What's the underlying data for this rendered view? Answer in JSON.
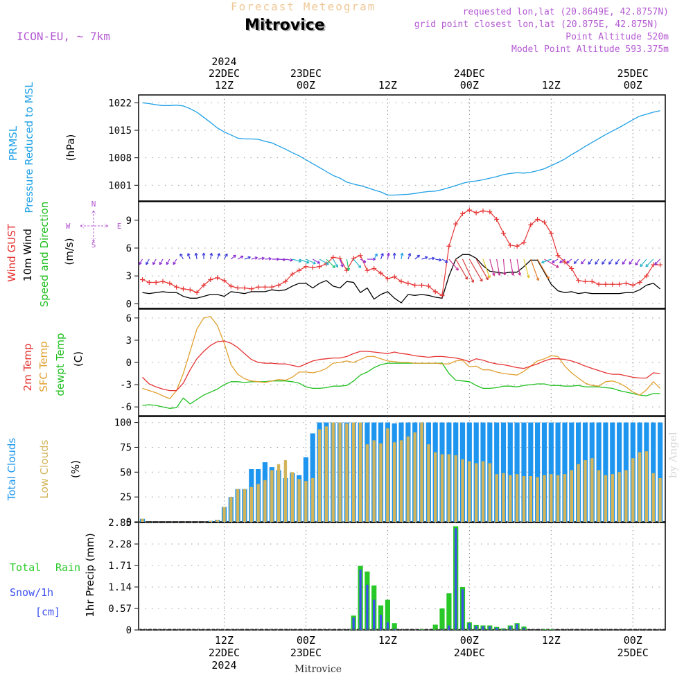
{
  "header": {
    "product_title": "Forecast Meteogram",
    "location": "Mitrovice",
    "model": "ICON-EU, ~ 7km",
    "requested": "requested lon,lat (20.8649E, 42.8757N)",
    "grid_point": "grid point closest lon,lat (20.875E, 42.875N)",
    "point_altitude": "Point Altitude 520m",
    "model_altitude": "Model Point Altitude 593.375m",
    "footer_location": "Mitrovice",
    "watermark": "by Angel"
  },
  "colors": {
    "pressure": "#1ea0e6",
    "gust": "#e63232",
    "wind": "#000000",
    "temp2m": "#e63232",
    "sfctemp": "#e0a030",
    "dewpt": "#20c020",
    "total_clouds": "#1e96f0",
    "low_clouds": "#d2b45a",
    "rain": "#28c828",
    "snow": "#3c50f0",
    "label_purple": "#b45ad2",
    "label_orange": "#f0c896"
  },
  "time_axis": {
    "top": [
      {
        "h": 12,
        "lines": [
          "2024",
          "22DEC",
          "12Z"
        ]
      },
      {
        "h": 24,
        "lines": [
          "23DEC",
          "00Z"
        ]
      },
      {
        "h": 36,
        "lines": [
          "12Z"
        ]
      },
      {
        "h": 48,
        "lines": [
          "24DEC",
          "00Z"
        ]
      },
      {
        "h": 60,
        "lines": [
          "12Z"
        ]
      },
      {
        "h": 72,
        "lines": [
          "25DEC",
          "00Z"
        ]
      }
    ],
    "bottom": [
      {
        "h": 12,
        "lines": [
          "12Z",
          "22DEC",
          "2024"
        ]
      },
      {
        "h": 24,
        "lines": [
          "00Z",
          "23DEC"
        ]
      },
      {
        "h": 36,
        "lines": [
          "12Z"
        ]
      },
      {
        "h": 48,
        "lines": [
          "00Z",
          "24DEC"
        ]
      },
      {
        "h": 60,
        "lines": [
          "12Z"
        ]
      },
      {
        "h": 72,
        "lines": [
          "00Z",
          "25DEC"
        ]
      }
    ]
  },
  "chart_data": [
    {
      "id": "pressure",
      "type": "line",
      "axis_labels": [
        "PRMSL",
        "Pressure Reduced to MSL"
      ],
      "unit": "(hPa)",
      "yticks": [
        "1022",
        "1015",
        "1008",
        "1001"
      ],
      "ylim": [
        997,
        1024
      ],
      "x_hours_start": 0,
      "series": [
        {
          "name": "PRMSL",
          "values": [
            1022,
            1021.8,
            1021.5,
            1021.3,
            1021.3,
            1021.4,
            1021.2,
            1020.5,
            1019.6,
            1018.3,
            1017,
            1015.6,
            1014.6,
            1013.8,
            1013,
            1012.8,
            1012.8,
            1012.7,
            1012.2,
            1011.8,
            1011,
            1010.2,
            1009.3,
            1008.5,
            1007.5,
            1006.5,
            1005.5,
            1004.5,
            1003.5,
            1002.8,
            1001.8,
            1001.3,
            1000.9,
            1000.4,
            999.8,
            999.3,
            998.5,
            998.5,
            998.6,
            998.7,
            998.9,
            999.2,
            999.4,
            999.5,
            999.9,
            1000.4,
            1000.9,
            1001.5,
            1001.9,
            1002.1,
            1002.4,
            1002.8,
            1003.2,
            1003.7,
            1004,
            1004.2,
            1004.1,
            1004.3,
            1004.7,
            1005.2,
            1006,
            1006.8,
            1007.7,
            1008.8,
            1009.8,
            1010.9,
            1011.9,
            1012.9,
            1013.9,
            1014.8,
            1015.7,
            1016.7,
            1017.7,
            1018.6,
            1019.1,
            1019.6,
            1020
          ]
        }
      ]
    },
    {
      "id": "wind",
      "type": "line",
      "axis_labels": [
        "Wind GUST",
        "10m Wind",
        "Speed and Direction"
      ],
      "compass": [
        "N",
        "S",
        "W",
        "E"
      ],
      "unit": "(m/s)",
      "yticks": [
        "9",
        "6",
        "3",
        "0"
      ],
      "ylim": [
        -0.5,
        11
      ],
      "x_hours_start": 0,
      "series": [
        {
          "name": "Wind GUST",
          "values": [
            2.6,
            2.3,
            2.3,
            2.4,
            2.2,
            1.8,
            1.6,
            1.5,
            1.2,
            2,
            2.6,
            2.8,
            2.5,
            1.9,
            1.7,
            1.7,
            1.6,
            1.8,
            1.8,
            1.8,
            2,
            2.4,
            3.2,
            3.6,
            4,
            3.9,
            4,
            4.3,
            5,
            4.9,
            3.6,
            4.9,
            5.2,
            3.6,
            3.8,
            3.3,
            2.7,
            2.9,
            2.4,
            2.2,
            2,
            2,
            1.9,
            1.3,
            0.9,
            6.2,
            8.6,
            9.7,
            10.1,
            9.8,
            10,
            9.9,
            9.1,
            7.6,
            6.3,
            6.2,
            6.6,
            8.5,
            9.1,
            8.8,
            7.6,
            5.2,
            4.5,
            3.8,
            2.5,
            2.4,
            2.4,
            2.1,
            2.1,
            2.1,
            2.1,
            2.2,
            2,
            2.3,
            3,
            4.2,
            4.2
          ]
        },
        {
          "name": "10m Wind",
          "values": [
            1.2,
            1.1,
            1.2,
            1.3,
            1.2,
            1.2,
            0.8,
            0.6,
            0.6,
            0.8,
            1,
            1,
            0.8,
            1.3,
            1.2,
            1.1,
            1.3,
            1.3,
            1.3,
            1.5,
            1.4,
            1.5,
            1.9,
            2.2,
            2.2,
            1.7,
            2.2,
            2.5,
            1.9,
            1.7,
            2.4,
            2.3,
            1.2,
            1.7,
            0.5,
            1,
            1.3,
            0.6,
            0.1,
            1,
            0.9,
            1,
            0.9,
            0.7,
            0.6,
            3,
            4.8,
            5.3,
            5.3,
            4.9,
            4.1,
            3.5,
            3.4,
            3.3,
            3.4,
            3.4,
            4,
            4.7,
            4.7,
            3.4,
            2.1,
            1.4,
            1.2,
            1.3,
            1.1,
            1.2,
            1.1,
            1.1,
            1.1,
            1.1,
            1.1,
            1.2,
            1.2,
            1.5,
            2,
            2.2,
            1.6
          ]
        },
        {
          "name": "wind_direction_deg",
          "values": [
            30,
            30,
            30,
            30,
            30,
            30,
            150,
            160,
            170,
            180,
            190,
            200,
            210,
            230,
            240,
            250,
            255,
            260,
            265,
            270,
            275,
            280,
            285,
            290,
            295,
            300,
            300,
            315,
            330,
            340,
            350,
            320,
            300,
            270,
            210,
            200,
            190,
            180,
            190,
            200,
            230,
            250,
            260,
            280,
            300,
            320,
            330,
            335,
            330,
            330,
            340,
            345,
            350,
            355,
            350,
            350,
            345,
            340,
            330,
            300,
            70,
            60,
            55,
            50,
            45,
            40,
            35,
            35,
            35,
            35,
            35,
            35,
            35,
            35,
            40,
            45,
            45
          ]
        }
      ]
    },
    {
      "id": "temperature",
      "type": "line",
      "axis_labels": [
        "2m Temp",
        "SFC Temp",
        "dewpt Temp"
      ],
      "unit": "(C)",
      "yticks": [
        "6",
        "3",
        "0",
        "-3",
        "-6"
      ],
      "ylim": [
        -7.2,
        7.2
      ],
      "x_hours_start": 0,
      "series": [
        {
          "name": "2m Temp",
          "values": [
            -2,
            -2.9,
            -3.3,
            -3.6,
            -3.8,
            -3.8,
            -2.8,
            -1,
            0.5,
            1.5,
            2.3,
            2.8,
            2.9,
            2.6,
            2,
            1.2,
            0.4,
            0,
            -0.1,
            -0.1,
            -0.2,
            -0.2,
            -0.4,
            -0.6,
            -0.2,
            0.2,
            0.4,
            0.5,
            0.6,
            0.6,
            0.8,
            1.2,
            1.5,
            1.5,
            1.4,
            1.3,
            1.2,
            1.4,
            1.2,
            1.1,
            0.9,
            0.8,
            0.7,
            0.8,
            0.8,
            0.7,
            0.6,
            0.4,
            0.1,
            0.5,
            0.3,
            0,
            -0.2,
            -0.3,
            -0.5,
            -0.7,
            -0.8,
            -0.5,
            -0.2,
            0.2,
            0.5,
            0.5,
            0.4,
            0.2,
            -0.1,
            -0.5,
            -0.8,
            -1.1,
            -1.4,
            -1.6,
            -1.6,
            -1.8,
            -2,
            -2.1,
            -2.1,
            -1.4,
            -1.5
          ]
        },
        {
          "name": "SFC Temp",
          "values": [
            -3.5,
            -3.8,
            -4.1,
            -4.5,
            -4.9,
            -3.8,
            -1.5,
            1.5,
            4.5,
            6,
            6.2,
            5,
            2.6,
            -0.3,
            -1.6,
            -2.2,
            -2.5,
            -2.6,
            -2.7,
            -2.5,
            -2.3,
            -2.4,
            -2,
            -1.3,
            -1.3,
            -1.4,
            -1.2,
            -0.8,
            -0.1,
            0,
            0.2,
            0,
            0.4,
            0.8,
            0.8,
            0.5,
            0.2,
            0.1,
            0,
            0,
            -0.1,
            -0.1,
            -0.1,
            -0.1,
            -0.2,
            -0.2,
            0.2,
            0.3,
            -0.6,
            -0.5,
            -1,
            -1,
            -1.3,
            -1.5,
            -1.6,
            -1.7,
            -1.2,
            -0.5,
            0.2,
            0.5,
            0.9,
            0.8,
            -0.5,
            -1.4,
            -2.1,
            -2.8,
            -3.1,
            -3.2,
            -2.6,
            -2.5,
            -2.8,
            -3.3,
            -4,
            -4.4,
            -3.7,
            -2.6,
            -3.5
          ]
        },
        {
          "name": "dewpt Temp",
          "values": [
            -5.8,
            -5.7,
            -5.8,
            -6,
            -6.2,
            -6.1,
            -4.8,
            -5.6,
            -5,
            -4.4,
            -4,
            -3.6,
            -3,
            -2.6,
            -2.6,
            -2.7,
            -2.6,
            -2.6,
            -2.6,
            -2.5,
            -2.5,
            -2.5,
            -2.6,
            -2.8,
            -3.3,
            -3.5,
            -3.5,
            -3.4,
            -3.2,
            -3.2,
            -3.1,
            -2.5,
            -1.7,
            -1.3,
            -0.7,
            -0.3,
            -0.1,
            -0.1,
            -0.1,
            -0.1,
            -0.1,
            -0.1,
            -0.1,
            -0.1,
            -0.1,
            -1.5,
            -2.4,
            -2.5,
            -2.6,
            -3.1,
            -3.5,
            -3.5,
            -3.4,
            -3.2,
            -3.2,
            -3.3,
            -3.1,
            -3,
            -2.9,
            -2.9,
            -3.1,
            -3.1,
            -3.2,
            -3.2,
            -3.1,
            -3.3,
            -3.3,
            -3.3,
            -3.4,
            -3.5,
            -3.8,
            -4,
            -4.2,
            -4.4,
            -4.5,
            -4.2,
            -4.2
          ]
        }
      ]
    },
    {
      "id": "clouds",
      "type": "bar",
      "axis_labels": [
        "Total Clouds",
        "Low Clouds"
      ],
      "unit": "(%)",
      "yticks": [
        "100",
        "75",
        "50",
        "25",
        "0"
      ],
      "ylim": [
        0,
        106
      ],
      "x_hours_start": 0,
      "series": [
        {
          "name": "Total Clouds",
          "values": [
            3,
            0,
            0,
            0,
            0,
            0,
            0,
            0,
            0,
            0,
            1,
            2,
            15,
            25,
            33,
            33,
            53,
            53,
            60,
            55,
            52,
            44,
            49,
            47,
            65,
            89,
            100,
            100,
            100,
            100,
            100,
            100,
            100,
            100,
            100,
            100,
            100,
            99,
            100,
            100,
            100,
            100,
            100,
            100,
            100,
            100,
            100,
            100,
            100,
            100,
            100,
            100,
            100,
            100,
            100,
            100,
            100,
            100,
            100,
            100,
            100,
            100,
            100,
            100,
            100,
            100,
            100,
            100,
            100,
            100,
            100,
            100,
            100,
            100,
            100,
            100,
            100
          ]
        },
        {
          "name": "Low Clouds",
          "values": [
            3,
            0,
            0,
            0,
            0,
            0,
            0,
            0,
            0,
            0,
            1,
            2,
            15,
            25,
            33,
            33,
            35,
            38,
            42,
            52,
            58,
            62,
            50,
            43,
            41,
            44,
            93,
            96,
            100,
            100,
            99,
            100,
            100,
            78,
            82,
            79,
            94,
            80,
            82,
            86,
            90,
            100,
            78,
            70,
            68,
            68,
            67,
            63,
            61,
            59,
            61,
            59,
            48,
            49,
            47,
            48,
            46,
            46,
            45,
            47,
            48,
            47,
            48,
            52,
            58,
            62,
            64,
            52,
            47,
            48,
            50,
            52,
            64,
            70,
            71,
            49,
            44
          ]
        }
      ]
    },
    {
      "id": "precip",
      "type": "bar",
      "axis_labels": [
        "Total Rain",
        "Snow/1h",
        "[cm]",
        "1hr Precip (mm)"
      ],
      "unit": "1hr Precip (mm)",
      "yticks": [
        "2.85",
        "2.28",
        "1.71",
        "1.14",
        "0.57",
        "0"
      ],
      "ylim": [
        0,
        2.85
      ],
      "x_hours_start": 0,
      "series": [
        {
          "name": "Total Rain",
          "values": [
            0,
            0,
            0,
            0,
            0,
            0,
            0,
            0,
            0,
            0,
            0,
            0,
            0,
            0,
            0,
            0,
            0,
            0,
            0,
            0,
            0,
            0,
            0,
            0,
            0,
            0,
            0,
            0,
            0,
            0,
            0,
            0.38,
            1.7,
            1.55,
            1.18,
            0.65,
            0.8,
            0.18,
            0,
            0,
            0,
            0.01,
            0,
            0.14,
            0.57,
            0.97,
            2.75,
            1.14,
            0.2,
            0.13,
            0.12,
            0.12,
            0.08,
            0.04,
            0.12,
            0.18,
            0.09,
            0,
            0,
            0.02,
            0.02,
            0,
            0,
            0,
            0,
            0,
            0,
            0,
            0,
            0,
            0,
            0,
            0,
            0,
            0,
            0,
            0
          ]
        },
        {
          "name": "Snow/1h",
          "values": [
            0,
            0,
            0,
            0,
            0,
            0,
            0,
            0,
            0,
            0,
            0,
            0,
            0,
            0,
            0,
            0,
            0,
            0,
            0,
            0,
            0,
            0,
            0,
            0,
            0,
            0,
            0,
            0,
            0,
            0,
            0,
            0.33,
            1.6,
            1.2,
            0.8,
            0.4,
            0.2,
            0.03,
            0,
            0,
            0,
            0,
            0,
            0,
            0.02,
            0.12,
            2.7,
            1.08,
            0.18,
            0.11,
            0.1,
            0.1,
            0.06,
            0.03,
            0.1,
            0.16,
            0.06,
            0,
            0,
            0,
            0,
            0,
            0,
            0,
            0,
            0,
            0,
            0,
            0,
            0,
            0,
            0,
            0,
            0,
            0,
            0,
            0
          ]
        }
      ]
    }
  ]
}
